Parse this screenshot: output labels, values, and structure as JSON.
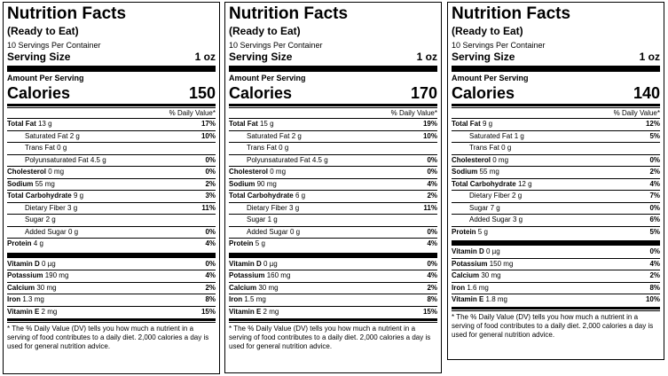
{
  "labels": [
    {
      "title": "Nutrition Facts",
      "subtitle": "(Ready to Eat)",
      "servings": "10 Servings Per Container",
      "serving_size_label": "Serving Size",
      "serving_size": "1 oz",
      "amount_per_serving": "Amount Per Serving",
      "calories_label": "Calories",
      "calories": "150",
      "dv_header": "% Daily Value*",
      "nutrients": [
        {
          "name": "Total Fat",
          "amount": "13 g",
          "dv": "17%",
          "bold": true,
          "indent": false
        },
        {
          "name": "Saturated Fat",
          "amount": "2 g",
          "dv": "10%",
          "bold": false,
          "indent": true
        },
        {
          "name": "Trans Fat",
          "amount": "0 g",
          "dv": "",
          "bold": false,
          "indent": true
        },
        {
          "name": "Polyunsaturated Fat",
          "amount": "4.5 g",
          "dv": "0%",
          "bold": false,
          "indent": true
        },
        {
          "name": "Cholesterol",
          "amount": "0 mg",
          "dv": "0%",
          "bold": true,
          "indent": false
        },
        {
          "name": "Sodium",
          "amount": "55 mg",
          "dv": "2%",
          "bold": true,
          "indent": false
        },
        {
          "name": "Total Carbohydrate",
          "amount": "9 g",
          "dv": "3%",
          "bold": true,
          "indent": false
        },
        {
          "name": "Dietary Fiber",
          "amount": "3 g",
          "dv": "11%",
          "bold": false,
          "indent": true
        },
        {
          "name": "Sugar",
          "amount": "2 g",
          "dv": "",
          "bold": false,
          "indent": true
        },
        {
          "name": "Added Sugar",
          "amount": "0 g",
          "dv": "0%",
          "bold": false,
          "indent": true
        },
        {
          "name": "Protein",
          "amount": "4 g",
          "dv": "4%",
          "bold": true,
          "indent": false
        }
      ],
      "vitamins": [
        {
          "name": "Vitamin D",
          "amount": "0 µg",
          "dv": "0%"
        },
        {
          "name": "Potassium",
          "amount": "190 mg",
          "dv": "4%"
        },
        {
          "name": "Calcium",
          "amount": "30 mg",
          "dv": "2%"
        },
        {
          "name": "Iron",
          "amount": "1.3 mg",
          "dv": "8%"
        },
        {
          "name": "Vitamin E",
          "amount": "2 mg",
          "dv": "15%"
        }
      ],
      "footnote": "* The % Daily Value (DV) tells you how much a nutrient in a serving of food contributes to a daily diet. 2,000 calories a day is used for general nutrition advice."
    },
    {
      "title": "Nutrition Facts",
      "subtitle": "(Ready to Eat)",
      "servings": "10 Servings Per Container",
      "serving_size_label": "Serving Size",
      "serving_size": "1 oz",
      "amount_per_serving": "Amount Per Serving",
      "calories_label": "Calories",
      "calories": "170",
      "dv_header": "% Daily Value*",
      "nutrients": [
        {
          "name": "Total Fat",
          "amount": "15 g",
          "dv": "19%",
          "bold": true,
          "indent": false
        },
        {
          "name": "Saturated Fat",
          "amount": "2 g",
          "dv": "10%",
          "bold": false,
          "indent": true
        },
        {
          "name": "Trans Fat",
          "amount": "0 g",
          "dv": "",
          "bold": false,
          "indent": true
        },
        {
          "name": "Polyunsaturated Fat",
          "amount": "4.5 g",
          "dv": "0%",
          "bold": false,
          "indent": true
        },
        {
          "name": "Cholesterol",
          "amount": "0 mg",
          "dv": "0%",
          "bold": true,
          "indent": false
        },
        {
          "name": "Sodium",
          "amount": "90 mg",
          "dv": "4%",
          "bold": true,
          "indent": false
        },
        {
          "name": "Total Carbohydrate",
          "amount": "6 g",
          "dv": "2%",
          "bold": true,
          "indent": false
        },
        {
          "name": "Dietary Fiber",
          "amount": "3 g",
          "dv": "11%",
          "bold": false,
          "indent": true
        },
        {
          "name": "Sugar",
          "amount": "1 g",
          "dv": "",
          "bold": false,
          "indent": true
        },
        {
          "name": "Added Sugar",
          "amount": "0 g",
          "dv": "0%",
          "bold": false,
          "indent": true
        },
        {
          "name": "Protein",
          "amount": "5 g",
          "dv": "4%",
          "bold": true,
          "indent": false
        }
      ],
      "vitamins": [
        {
          "name": "Vitamin D",
          "amount": "0 µg",
          "dv": "0%"
        },
        {
          "name": "Potassium",
          "amount": "160 mg",
          "dv": "4%"
        },
        {
          "name": "Calcium",
          "amount": "30 mg",
          "dv": "2%"
        },
        {
          "name": "Iron",
          "amount": "1.5 mg",
          "dv": "8%"
        },
        {
          "name": "Vitamin E",
          "amount": "2 mg",
          "dv": "15%"
        }
      ],
      "footnote": "* The % Daily Value (DV) tells you how much a nutrient in a serving of food contributes to a daily diet. 2,000 calories a day is used for general nutrition advice."
    },
    {
      "title": "Nutrition Facts",
      "subtitle": "(Ready to Eat)",
      "servings": "10 Servings Per Container",
      "serving_size_label": "Serving Size",
      "serving_size": "1 oz",
      "amount_per_serving": "Amount Per Serving",
      "calories_label": "Calories",
      "calories": "140",
      "dv_header": "% Daily Value*",
      "nutrients": [
        {
          "name": "Total Fat",
          "amount": "9 g",
          "dv": "12%",
          "bold": true,
          "indent": false
        },
        {
          "name": "Saturated Fat",
          "amount": "1 g",
          "dv": "5%",
          "bold": false,
          "indent": true
        },
        {
          "name": "Trans Fat",
          "amount": "0 g",
          "dv": "",
          "bold": false,
          "indent": true
        },
        {
          "name": "Cholesterol",
          "amount": "0 mg",
          "dv": "0%",
          "bold": true,
          "indent": false
        },
        {
          "name": "Sodium",
          "amount": "55 mg",
          "dv": "2%",
          "bold": true,
          "indent": false
        },
        {
          "name": "Total Carbohydrate",
          "amount": "12 g",
          "dv": "4%",
          "bold": true,
          "indent": false
        },
        {
          "name": "Dietary Fiber",
          "amount": "2 g",
          "dv": "7%",
          "bold": false,
          "indent": true
        },
        {
          "name": "Sugar",
          "amount": "7 g",
          "dv": "0%",
          "bold": false,
          "indent": true
        },
        {
          "name": "Added Sugar",
          "amount": "3 g",
          "dv": "6%",
          "bold": false,
          "indent": true
        },
        {
          "name": "Protein",
          "amount": "5 g",
          "dv": "5%",
          "bold": true,
          "indent": false
        }
      ],
      "vitamins": [
        {
          "name": "Vitamin D",
          "amount": "0 µg",
          "dv": "0%"
        },
        {
          "name": "Potassium",
          "amount": "150 mg",
          "dv": "4%"
        },
        {
          "name": "Calcium",
          "amount": "30 mg",
          "dv": "2%"
        },
        {
          "name": "Iron",
          "amount": "1.6 mg",
          "dv": "8%"
        },
        {
          "name": "Vitamin E",
          "amount": "1.8 mg",
          "dv": "10%"
        }
      ],
      "footnote": "* The % Daily Value (DV) tells you how much a nutrient in a serving of food contributes to a daily diet. 2,000 calories a day is used for general nutrition advice."
    }
  ]
}
